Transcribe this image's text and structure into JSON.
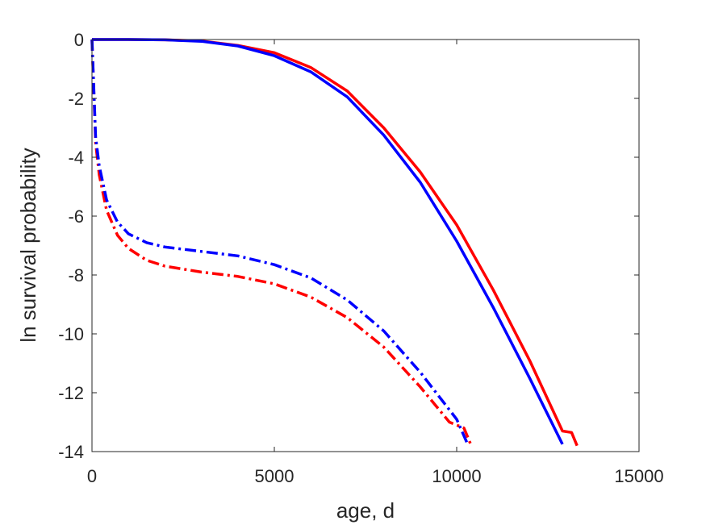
{
  "chart_data": {
    "type": "line",
    "title": "",
    "xlabel": "age, d",
    "ylabel": "ln survival probability",
    "xlim": [
      0,
      15000
    ],
    "ylim": [
      -14,
      0
    ],
    "xticks": [
      0,
      5000,
      10000,
      15000
    ],
    "yticks": [
      0,
      -2,
      -4,
      -6,
      -8,
      -10,
      -12,
      -14
    ],
    "xtick_labels": [
      "0",
      "5000",
      "10000",
      "15000"
    ],
    "ytick_labels": [
      "0",
      "-2",
      "-4",
      "-6",
      "-8",
      "-10",
      "-12",
      "-14"
    ],
    "grid": false,
    "legend": "none",
    "series": [
      {
        "color": "#ff0000",
        "style": "solid",
        "points": [
          [
            0,
            0
          ],
          [
            1000,
            0
          ],
          [
            2000,
            -0.01
          ],
          [
            3000,
            -0.05
          ],
          [
            4000,
            -0.2
          ],
          [
            5000,
            -0.45
          ],
          [
            6000,
            -0.95
          ],
          [
            7000,
            -1.75
          ],
          [
            8000,
            -3.0
          ],
          [
            9000,
            -4.5
          ],
          [
            10000,
            -6.3
          ],
          [
            11000,
            -8.5
          ],
          [
            12000,
            -10.9
          ],
          [
            12900,
            -13.3
          ],
          [
            13150,
            -13.35
          ],
          [
            13300,
            -13.8
          ]
        ]
      },
      {
        "color": "#0000ff",
        "style": "solid",
        "points": [
          [
            0,
            0
          ],
          [
            1000,
            0
          ],
          [
            2000,
            -0.01
          ],
          [
            3000,
            -0.06
          ],
          [
            4000,
            -0.22
          ],
          [
            5000,
            -0.55
          ],
          [
            6000,
            -1.1
          ],
          [
            7000,
            -1.95
          ],
          [
            8000,
            -3.25
          ],
          [
            9000,
            -4.85
          ],
          [
            10000,
            -6.85
          ],
          [
            11000,
            -9.1
          ],
          [
            12000,
            -11.5
          ],
          [
            12900,
            -13.75
          ]
        ]
      },
      {
        "color": "#ff0000",
        "style": "dashdot",
        "points": [
          [
            0,
            0
          ],
          [
            100,
            -3.5
          ],
          [
            200,
            -4.6
          ],
          [
            400,
            -5.8
          ],
          [
            700,
            -6.65
          ],
          [
            1000,
            -7.1
          ],
          [
            1500,
            -7.5
          ],
          [
            2000,
            -7.7
          ],
          [
            3000,
            -7.9
          ],
          [
            4000,
            -8.05
          ],
          [
            5000,
            -8.3
          ],
          [
            6000,
            -8.75
          ],
          [
            7000,
            -9.45
          ],
          [
            8000,
            -10.45
          ],
          [
            9000,
            -11.8
          ],
          [
            9800,
            -13.0
          ],
          [
            10000,
            -13.1
          ],
          [
            10200,
            -13.2
          ],
          [
            10400,
            -13.8
          ]
        ]
      },
      {
        "color": "#0000ff",
        "style": "dashdot",
        "points": [
          [
            0,
            0
          ],
          [
            100,
            -3.3
          ],
          [
            200,
            -4.3
          ],
          [
            400,
            -5.45
          ],
          [
            700,
            -6.2
          ],
          [
            1000,
            -6.6
          ],
          [
            1500,
            -6.9
          ],
          [
            2000,
            -7.05
          ],
          [
            3000,
            -7.2
          ],
          [
            4000,
            -7.35
          ],
          [
            5000,
            -7.65
          ],
          [
            6000,
            -8.1
          ],
          [
            7000,
            -8.85
          ],
          [
            8000,
            -9.9
          ],
          [
            9000,
            -11.3
          ],
          [
            10000,
            -12.9
          ],
          [
            10300,
            -13.75
          ]
        ]
      }
    ]
  }
}
